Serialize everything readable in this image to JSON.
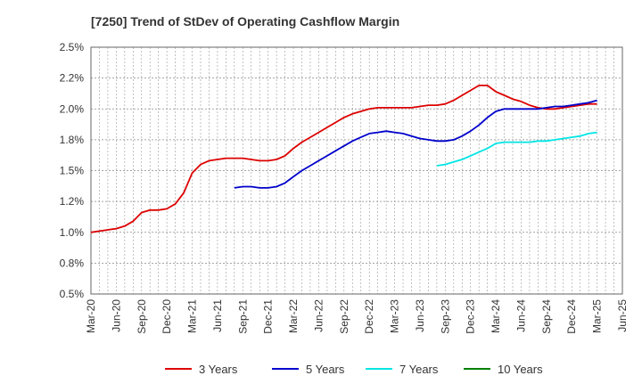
{
  "chart_data": {
    "type": "line",
    "title": "[7250]  Trend of StDev of Operating Cashflow Margin",
    "xlabel": "",
    "ylabel": "",
    "x_ticks": [
      "Mar-20",
      "Jun-20",
      "Sep-20",
      "Dec-20",
      "Mar-21",
      "Jun-21",
      "Sep-21",
      "Dec-21",
      "Mar-22",
      "Jun-22",
      "Sep-22",
      "Dec-22",
      "Mar-23",
      "Jun-23",
      "Sep-23",
      "Dec-23",
      "Mar-24",
      "Jun-24",
      "Sep-24",
      "Dec-24",
      "Mar-25",
      "Jun-25"
    ],
    "y_ticks": [
      "0.5%",
      "0.8%",
      "1.0%",
      "1.2%",
      "1.5%",
      "1.8%",
      "2.0%",
      "2.2%",
      "2.5%"
    ],
    "ylim": [
      0.5,
      2.5
    ],
    "y_unit": "%",
    "grid": true,
    "legend_position": "bottom",
    "series": [
      {
        "name": "3 Years",
        "color": "#dd0000",
        "points": [
          [
            "Mar-20",
            1.0
          ],
          [
            "Apr-20",
            1.01
          ],
          [
            "May-20",
            1.02
          ],
          [
            "Jun-20",
            1.03
          ],
          [
            "Jul-20",
            1.05
          ],
          [
            "Aug-20",
            1.09
          ],
          [
            "Sep-20",
            1.16
          ],
          [
            "Oct-20",
            1.18
          ],
          [
            "Nov-20",
            1.18
          ],
          [
            "Dec-20",
            1.19
          ],
          [
            "Jan-21",
            1.23
          ],
          [
            "Feb-21",
            1.32
          ],
          [
            "Mar-21",
            1.48
          ],
          [
            "Apr-21",
            1.55
          ],
          [
            "May-21",
            1.58
          ],
          [
            "Jun-21",
            1.59
          ],
          [
            "Jul-21",
            1.6
          ],
          [
            "Aug-21",
            1.6
          ],
          [
            "Sep-21",
            1.6
          ],
          [
            "Oct-21",
            1.59
          ],
          [
            "Nov-21",
            1.58
          ],
          [
            "Dec-21",
            1.58
          ],
          [
            "Jan-22",
            1.59
          ],
          [
            "Feb-22",
            1.62
          ],
          [
            "Mar-22",
            1.68
          ],
          [
            "Apr-22",
            1.73
          ],
          [
            "May-22",
            1.77
          ],
          [
            "Jun-22",
            1.81
          ],
          [
            "Jul-22",
            1.85
          ],
          [
            "Aug-22",
            1.89
          ],
          [
            "Sep-22",
            1.93
          ],
          [
            "Oct-22",
            1.96
          ],
          [
            "Nov-22",
            1.98
          ],
          [
            "Dec-22",
            2.0
          ],
          [
            "Jan-23",
            2.01
          ],
          [
            "Feb-23",
            2.01
          ],
          [
            "Mar-23",
            2.01
          ],
          [
            "Apr-23",
            2.01
          ],
          [
            "May-23",
            2.01
          ],
          [
            "Jun-23",
            2.02
          ],
          [
            "Jul-23",
            2.03
          ],
          [
            "Aug-23",
            2.03
          ],
          [
            "Sep-23",
            2.04
          ],
          [
            "Oct-23",
            2.07
          ],
          [
            "Nov-23",
            2.11
          ],
          [
            "Dec-23",
            2.15
          ],
          [
            "Jan-24",
            2.19
          ],
          [
            "Feb-24",
            2.19
          ],
          [
            "Mar-24",
            2.14
          ],
          [
            "Apr-24",
            2.11
          ],
          [
            "May-24",
            2.08
          ],
          [
            "Jun-24",
            2.06
          ],
          [
            "Jul-24",
            2.03
          ],
          [
            "Aug-24",
            2.01
          ],
          [
            "Sep-24",
            2.0
          ],
          [
            "Oct-24",
            2.0
          ],
          [
            "Nov-24",
            2.01
          ],
          [
            "Dec-24",
            2.02
          ],
          [
            "Jan-25",
            2.03
          ],
          [
            "Feb-25",
            2.04
          ],
          [
            "Mar-25",
            2.04
          ]
        ]
      },
      {
        "name": "5 Years",
        "color": "#0000cc",
        "points": [
          [
            "Aug-21",
            1.36
          ],
          [
            "Sep-21",
            1.37
          ],
          [
            "Oct-21",
            1.37
          ],
          [
            "Nov-21",
            1.36
          ],
          [
            "Dec-21",
            1.36
          ],
          [
            "Jan-22",
            1.37
          ],
          [
            "Feb-22",
            1.4
          ],
          [
            "Mar-22",
            1.45
          ],
          [
            "Apr-22",
            1.5
          ],
          [
            "May-22",
            1.54
          ],
          [
            "Jun-22",
            1.58
          ],
          [
            "Jul-22",
            1.62
          ],
          [
            "Aug-22",
            1.66
          ],
          [
            "Sep-22",
            1.7
          ],
          [
            "Oct-22",
            1.74
          ],
          [
            "Nov-22",
            1.77
          ],
          [
            "Dec-22",
            1.8
          ],
          [
            "Jan-23",
            1.81
          ],
          [
            "Feb-23",
            1.82
          ],
          [
            "Mar-23",
            1.81
          ],
          [
            "Apr-23",
            1.8
          ],
          [
            "May-23",
            1.78
          ],
          [
            "Jun-23",
            1.76
          ],
          [
            "Jul-23",
            1.75
          ],
          [
            "Aug-23",
            1.74
          ],
          [
            "Sep-23",
            1.74
          ],
          [
            "Oct-23",
            1.75
          ],
          [
            "Nov-23",
            1.78
          ],
          [
            "Dec-23",
            1.82
          ],
          [
            "Jan-24",
            1.87
          ],
          [
            "Feb-24",
            1.93
          ],
          [
            "Mar-24",
            1.98
          ],
          [
            "Apr-24",
            2.0
          ],
          [
            "May-24",
            2.0
          ],
          [
            "Jun-24",
            2.0
          ],
          [
            "Jul-24",
            2.0
          ],
          [
            "Aug-24",
            2.0
          ],
          [
            "Sep-24",
            2.01
          ],
          [
            "Oct-24",
            2.02
          ],
          [
            "Nov-24",
            2.02
          ],
          [
            "Dec-24",
            2.03
          ],
          [
            "Jan-25",
            2.04
          ],
          [
            "Feb-25",
            2.05
          ],
          [
            "Mar-25",
            2.07
          ]
        ]
      },
      {
        "name": "7 Years",
        "color": "#00e5e5",
        "points": [
          [
            "Aug-23",
            1.54
          ],
          [
            "Sep-23",
            1.55
          ],
          [
            "Oct-23",
            1.57
          ],
          [
            "Nov-23",
            1.59
          ],
          [
            "Dec-23",
            1.62
          ],
          [
            "Jan-24",
            1.65
          ],
          [
            "Feb-24",
            1.68
          ],
          [
            "Mar-24",
            1.72
          ],
          [
            "Apr-24",
            1.73
          ],
          [
            "May-24",
            1.73
          ],
          [
            "Jun-24",
            1.73
          ],
          [
            "Jul-24",
            1.73
          ],
          [
            "Aug-24",
            1.74
          ],
          [
            "Sep-24",
            1.74
          ],
          [
            "Oct-24",
            1.75
          ],
          [
            "Nov-24",
            1.76
          ],
          [
            "Dec-24",
            1.77
          ],
          [
            "Jan-25",
            1.78
          ],
          [
            "Feb-25",
            1.8
          ],
          [
            "Mar-25",
            1.81
          ]
        ]
      },
      {
        "name": "10 Years",
        "color": "#008000",
        "points": []
      }
    ]
  }
}
